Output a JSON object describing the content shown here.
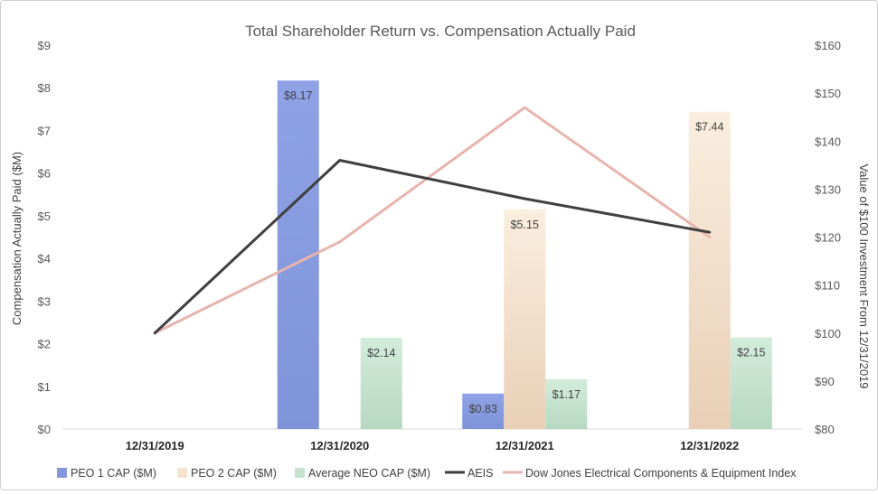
{
  "chart_data": {
    "type": "bar",
    "title": "Total Shareholder Return vs. Compensation Actually Paid",
    "categories": [
      "12/31/2019",
      "12/31/2020",
      "12/31/2021",
      "12/31/2022"
    ],
    "ylabel": "Compensation Actually Paid ($M)",
    "y2label": "Value of $100 Investment From 12/31/2019",
    "ylim": [
      0,
      9
    ],
    "y2lim": [
      80,
      160
    ],
    "y_ticks": [
      "$0",
      "$1",
      "$2",
      "$3",
      "$4",
      "$5",
      "$6",
      "$7",
      "$8",
      "$9"
    ],
    "y2_ticks": [
      "$80",
      "$90",
      "$100",
      "$110",
      "$120",
      "$130",
      "$140",
      "$150",
      "$160"
    ],
    "grid": false,
    "legend_position": "bottom",
    "bar_series": [
      {
        "name": "PEO 1 CAP ($M)",
        "color": "#8497dc",
        "values": [
          null,
          8.17,
          0.83,
          null
        ],
        "labels": [
          null,
          "$8.17",
          "$0.83",
          null
        ]
      },
      {
        "name": "PEO 2 CAP ($M)",
        "color": "#f6e3cf",
        "values": [
          null,
          null,
          5.15,
          7.44
        ],
        "labels": [
          null,
          null,
          "$5.15",
          "$7.44"
        ]
      },
      {
        "name": "Average NEO CAP ($M)",
        "color": "#c5e3cf",
        "values": [
          null,
          2.14,
          1.17,
          2.15
        ],
        "labels": [
          null,
          "$2.14",
          "$1.17",
          "$2.15"
        ]
      }
    ],
    "line_series": [
      {
        "name": "AEIS",
        "color": "#404040",
        "values": [
          100,
          136,
          128,
          121
        ]
      },
      {
        "name": "Dow Jones Electrical Components & Equipment Index",
        "color": "#e8b4ae",
        "values": [
          100,
          119,
          147,
          120
        ]
      }
    ]
  }
}
